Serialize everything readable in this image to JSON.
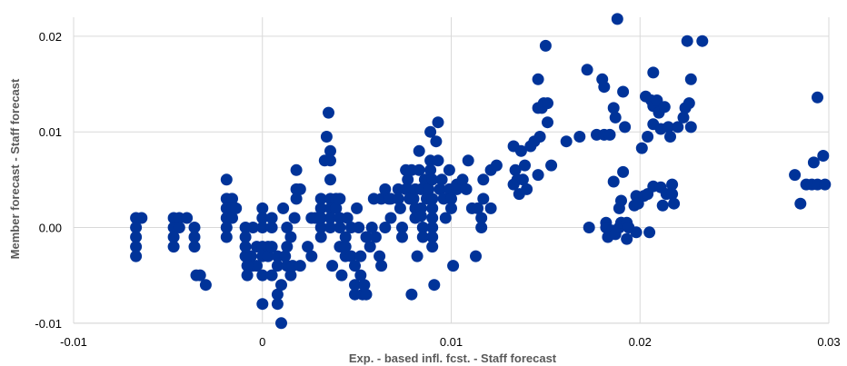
{
  "chart_data": {
    "type": "scatter",
    "title": "",
    "xlabel": "Exp. - based infl. fcst. - Staff forecast",
    "ylabel": "Member forecast - Staff forecast",
    "xlim": [
      -0.01,
      0.03
    ],
    "ylim": [
      -0.01,
      0.022
    ],
    "x_ticks": [
      -0.01,
      0,
      0.01,
      0.02,
      0.03
    ],
    "x_tick_labels": [
      "-0.01",
      "0",
      "0.01",
      "0.02",
      "0.03"
    ],
    "y_ticks": [
      -0.01,
      0,
      0.01,
      0.02
    ],
    "y_tick_labels": [
      "-0.01",
      "0.00",
      "0.01",
      "0.02"
    ],
    "grid": true,
    "marker_color": "#003399",
    "series": [
      {
        "points": [
          [
            -0.0067,
            0.001
          ],
          [
            -0.0067,
            0
          ],
          [
            -0.0067,
            -0.001
          ],
          [
            -0.0067,
            -0.002
          ],
          [
            -0.0067,
            -0.003
          ],
          [
            -0.0064,
            0.001
          ],
          [
            -0.0047,
            0.001
          ],
          [
            -0.0047,
            0
          ],
          [
            -0.0047,
            -0.001
          ],
          [
            -0.0047,
            -0.002
          ],
          [
            -0.0044,
            0.001
          ],
          [
            -0.0044,
            0
          ],
          [
            -0.004,
            0.001
          ],
          [
            -0.0036,
            0
          ],
          [
            -0.0036,
            -0.001
          ],
          [
            -0.0036,
            -0.002
          ],
          [
            -0.0035,
            -0.005
          ],
          [
            -0.0033,
            -0.005
          ],
          [
            -0.003,
            -0.006
          ],
          [
            -0.0019,
            0.005
          ],
          [
            -0.0019,
            0.003
          ],
          [
            -0.0019,
            0.002
          ],
          [
            -0.0019,
            0.001
          ],
          [
            -0.0019,
            0
          ],
          [
            -0.0019,
            -0.001
          ],
          [
            -0.0016,
            0.003
          ],
          [
            -0.0016,
            0.002
          ],
          [
            -0.0016,
            0.001
          ],
          [
            -0.0014,
            0.002
          ],
          [
            -0.0009,
            0
          ],
          [
            -0.0005,
            0
          ],
          [
            -0.0009,
            -0.001
          ],
          [
            -0.0006,
            -0.003
          ],
          [
            -0.0009,
            -0.003
          ],
          [
            -0.0005,
            -0.004
          ],
          [
            -0.0003,
            -0.002
          ],
          [
            -0.0009,
            -0.002
          ],
          [
            -0.0003,
            -0.004
          ],
          [
            0,
            0.002
          ],
          [
            0,
            0.001
          ],
          [
            0,
            0
          ],
          [
            0,
            -0.002
          ],
          [
            0,
            -0.003
          ],
          [
            0,
            -0.005
          ],
          [
            0,
            -0.008
          ],
          [
            -0.0008,
            -0.004
          ],
          [
            -0.0008,
            -0.005
          ],
          [
            0.0003,
            -0.002
          ],
          [
            0.0003,
            -0.003
          ],
          [
            0.0005,
            0.001
          ],
          [
            0.0005,
            0
          ],
          [
            0.0005,
            -0.002
          ],
          [
            0.0005,
            -0.005
          ],
          [
            0.0008,
            -0.003
          ],
          [
            0.0008,
            -0.004
          ],
          [
            0.0008,
            -0.007
          ],
          [
            0.0008,
            -0.008
          ],
          [
            0.001,
            -0.006
          ],
          [
            0.001,
            -0.01
          ],
          [
            0.0011,
            0.002
          ],
          [
            0.0012,
            -0.003
          ],
          [
            0.0013,
            0
          ],
          [
            0.0013,
            -0.002
          ],
          [
            0.0013,
            -0.004
          ],
          [
            0.0015,
            -0.005
          ],
          [
            0.0015,
            -0.001
          ],
          [
            0.0016,
            -0.004
          ],
          [
            0.0017,
            0.001
          ],
          [
            0.0018,
            0.006
          ],
          [
            0.0018,
            0.004
          ],
          [
            0.0018,
            0.003
          ],
          [
            0.002,
            0.004
          ],
          [
            0.002,
            -0.004
          ],
          [
            0.0024,
            -0.002
          ],
          [
            0.0026,
            -0.003
          ],
          [
            0.0026,
            0.001
          ],
          [
            0.0028,
            0.001
          ],
          [
            0.0031,
            0.002
          ],
          [
            0.0031,
            0.003
          ],
          [
            0.0031,
            0.001
          ],
          [
            0.0031,
            0
          ],
          [
            0.0031,
            -0.001
          ],
          [
            0.0033,
            0.007
          ],
          [
            0.0034,
            0.0095
          ],
          [
            0.0035,
            0.012
          ],
          [
            0.0036,
            0.008
          ],
          [
            0.0036,
            0.007
          ],
          [
            0.0036,
            0.005
          ],
          [
            0.0036,
            0.003
          ],
          [
            0.0036,
            0.002
          ],
          [
            0.0036,
            0.001
          ],
          [
            0.0036,
            0
          ],
          [
            0.0037,
            -0.004
          ],
          [
            0.0039,
            0.003
          ],
          [
            0.0039,
            0.002
          ],
          [
            0.0041,
            0.003
          ],
          [
            0.0041,
            0.001
          ],
          [
            0.0041,
            0
          ],
          [
            0.0041,
            -0.002
          ],
          [
            0.0042,
            -0.005
          ],
          [
            0.0044,
            -0.001
          ],
          [
            0.0044,
            -0.002
          ],
          [
            0.0044,
            -0.003
          ],
          [
            0.0045,
            0.001
          ],
          [
            0.0047,
            0
          ],
          [
            0.0047,
            -0.003
          ],
          [
            0.0049,
            -0.004
          ],
          [
            0.0049,
            -0.006
          ],
          [
            0.0049,
            -0.007
          ],
          [
            0.005,
            0.002
          ],
          [
            0.0051,
            0
          ],
          [
            0.0052,
            -0.003
          ],
          [
            0.0052,
            -0.005
          ],
          [
            0.0053,
            -0.007
          ],
          [
            0.0054,
            -0.006
          ],
          [
            0.0055,
            -0.007
          ],
          [
            0.0055,
            -0.001
          ],
          [
            0.0057,
            -0.002
          ],
          [
            0.0058,
            0
          ],
          [
            0.0059,
            0.003
          ],
          [
            0.006,
            -0.001
          ],
          [
            0.0062,
            -0.003
          ],
          [
            0.0063,
            0.003
          ],
          [
            0.0063,
            -0.004
          ],
          [
            0.0065,
            0.004
          ],
          [
            0.0065,
            0
          ],
          [
            0.0067,
            0.003
          ],
          [
            0.0068,
            0.003
          ],
          [
            0.0068,
            0.001
          ],
          [
            0.0072,
            0.004
          ],
          [
            0.0072,
            0.003
          ],
          [
            0.0073,
            0.002
          ],
          [
            0.0074,
            0
          ],
          [
            0.0074,
            -0.001
          ],
          [
            0.0076,
            0.004
          ],
          [
            0.0076,
            0.006
          ],
          [
            0.0077,
            0.005
          ],
          [
            0.0077,
            0.004
          ],
          [
            0.0078,
            0.003
          ],
          [
            0.0079,
            0.006
          ],
          [
            0.0079,
            -0.007
          ],
          [
            0.008,
            0.003
          ],
          [
            0.0081,
            0.004
          ],
          [
            0.0081,
            0.002
          ],
          [
            0.0081,
            0.001
          ],
          [
            0.0082,
            -0.003
          ],
          [
            0.0083,
            0.008
          ],
          [
            0.0083,
            0.006
          ],
          [
            0.0084,
            0.004
          ],
          [
            0.0084,
            0.002
          ],
          [
            0.0084,
            0.0012
          ],
          [
            0.0085,
            0
          ],
          [
            0.0085,
            -0.001
          ],
          [
            0.0086,
            0.005
          ],
          [
            0.0087,
            0.003
          ],
          [
            0.0088,
            0.004
          ],
          [
            0.0089,
            0.01
          ],
          [
            0.0089,
            0.007
          ],
          [
            0.0089,
            0.006
          ],
          [
            0.009,
            0.005
          ],
          [
            0.009,
            0.003
          ],
          [
            0.009,
            0.002
          ],
          [
            0.009,
            0.001
          ],
          [
            0.009,
            0
          ],
          [
            0.009,
            -0.001
          ],
          [
            0.009,
            -0.002
          ],
          [
            0.0091,
            -0.006
          ],
          [
            0.0092,
            0.009
          ],
          [
            0.0093,
            0.011
          ],
          [
            0.0093,
            0.007
          ],
          [
            0.0094,
            0.004
          ],
          [
            0.0095,
            0.005
          ],
          [
            0.0096,
            0.003
          ],
          [
            0.0097,
            0.001
          ],
          [
            0.0099,
            0.006
          ],
          [
            0.0099,
            0.004
          ],
          [
            0.01,
            0.003
          ],
          [
            0.01,
            0.002
          ],
          [
            0.0101,
            -0.004
          ],
          [
            0.0103,
            0.004
          ],
          [
            0.0103,
            0.0045
          ],
          [
            0.0106,
            0.005
          ],
          [
            0.0108,
            0.004
          ],
          [
            0.0109,
            0.007
          ],
          [
            0.0111,
            0.002
          ],
          [
            0.0113,
            -0.003
          ],
          [
            0.0114,
            0.002
          ],
          [
            0.0116,
            0.001
          ],
          [
            0.0116,
            0
          ],
          [
            0.0117,
            0.005
          ],
          [
            0.0117,
            0.003
          ],
          [
            0.0121,
            0.006
          ],
          [
            0.0121,
            0.002
          ],
          [
            0.0124,
            0.0065
          ],
          [
            0.0133,
            0.0085
          ],
          [
            0.0133,
            0.0045
          ],
          [
            0.0134,
            0.006
          ],
          [
            0.0135,
            0.005
          ],
          [
            0.0136,
            0.0035
          ],
          [
            0.0137,
            0.008
          ],
          [
            0.0138,
            0.005
          ],
          [
            0.0139,
            0.0065
          ],
          [
            0.014,
            0.004
          ],
          [
            0.0142,
            0.0085
          ],
          [
            0.0144,
            0.009
          ],
          [
            0.0146,
            0.0155
          ],
          [
            0.0146,
            0.0125
          ],
          [
            0.0146,
            0.0055
          ],
          [
            0.0147,
            0.0095
          ],
          [
            0.0148,
            0.0125
          ],
          [
            0.0149,
            0.013
          ],
          [
            0.015,
            0.019
          ],
          [
            0.0151,
            0.013
          ],
          [
            0.0151,
            0.011
          ],
          [
            0.0153,
            0.0065
          ],
          [
            0.0161,
            0.009
          ],
          [
            0.0168,
            0.0095
          ],
          [
            0.0172,
            0.0165
          ],
          [
            0.0173,
            0
          ],
          [
            0.0177,
            0.0097
          ],
          [
            0.018,
            0.0155
          ],
          [
            0.0181,
            0.0147
          ],
          [
            0.0181,
            0.0097
          ],
          [
            0.0182,
            0.0005
          ],
          [
            0.0182,
            0
          ],
          [
            0.0183,
            -0.001
          ],
          [
            0.0184,
            0.0097
          ],
          [
            0.0185,
            -0.0003
          ],
          [
            0.0186,
            0.0125
          ],
          [
            0.0186,
            0.0048
          ],
          [
            0.0187,
            0.0115
          ],
          [
            0.0187,
            -0.0007
          ],
          [
            0.0188,
            0.0218
          ],
          [
            0.0189,
            0
          ],
          [
            0.0189,
            0.002
          ],
          [
            0.019,
            0.0028
          ],
          [
            0.019,
            0.0005
          ],
          [
            0.019,
            0.0005
          ],
          [
            0.0191,
            0.0142
          ],
          [
            0.0191,
            0.0058
          ],
          [
            0.0192,
            0.0105
          ],
          [
            0.0193,
            0.0005
          ],
          [
            0.0193,
            -0.0012
          ],
          [
            0.0194,
            0
          ],
          [
            0.0197,
            0.0023
          ],
          [
            0.0198,
            -0.0005
          ],
          [
            0.0198,
            0.0033
          ],
          [
            0.0199,
            0.0025
          ],
          [
            0.0201,
            0.0083
          ],
          [
            0.0202,
            0.0033
          ],
          [
            0.0203,
            0.0137
          ],
          [
            0.0204,
            0.0095
          ],
          [
            0.0204,
            0.0035
          ],
          [
            0.0205,
            -0.0005
          ],
          [
            0.0206,
            0.0133
          ],
          [
            0.0207,
            0.0162
          ],
          [
            0.0207,
            0.0127
          ],
          [
            0.0207,
            0.0043
          ],
          [
            0.0207,
            0.0108
          ],
          [
            0.0209,
            0.0133
          ],
          [
            0.021,
            0.012
          ],
          [
            0.0211,
            0.0103
          ],
          [
            0.0211,
            0.0042
          ],
          [
            0.0212,
            0.0023
          ],
          [
            0.0213,
            0.0126
          ],
          [
            0.0214,
            0.0035
          ],
          [
            0.0215,
            0.0105
          ],
          [
            0.0216,
            0.0095
          ],
          [
            0.0217,
            0.0045
          ],
          [
            0.0217,
            0.0035
          ],
          [
            0.0218,
            0.0025
          ],
          [
            0.022,
            0.0105
          ],
          [
            0.0223,
            0.0115
          ],
          [
            0.0224,
            0.0125
          ],
          [
            0.0225,
            0.0195
          ],
          [
            0.0226,
            0.013
          ],
          [
            0.0227,
            0.0155
          ],
          [
            0.0227,
            0.0105
          ],
          [
            0.0233,
            0.0195
          ],
          [
            0.0282,
            0.0055
          ],
          [
            0.0285,
            0.0025
          ],
          [
            0.0288,
            0.0045
          ],
          [
            0.0291,
            0.0045
          ],
          [
            0.0292,
            0.0068
          ],
          [
            0.0294,
            0.0045
          ],
          [
            0.0294,
            0.0136
          ],
          [
            0.0297,
            0.0075
          ],
          [
            0.0298,
            0.0045
          ]
        ]
      }
    ]
  }
}
